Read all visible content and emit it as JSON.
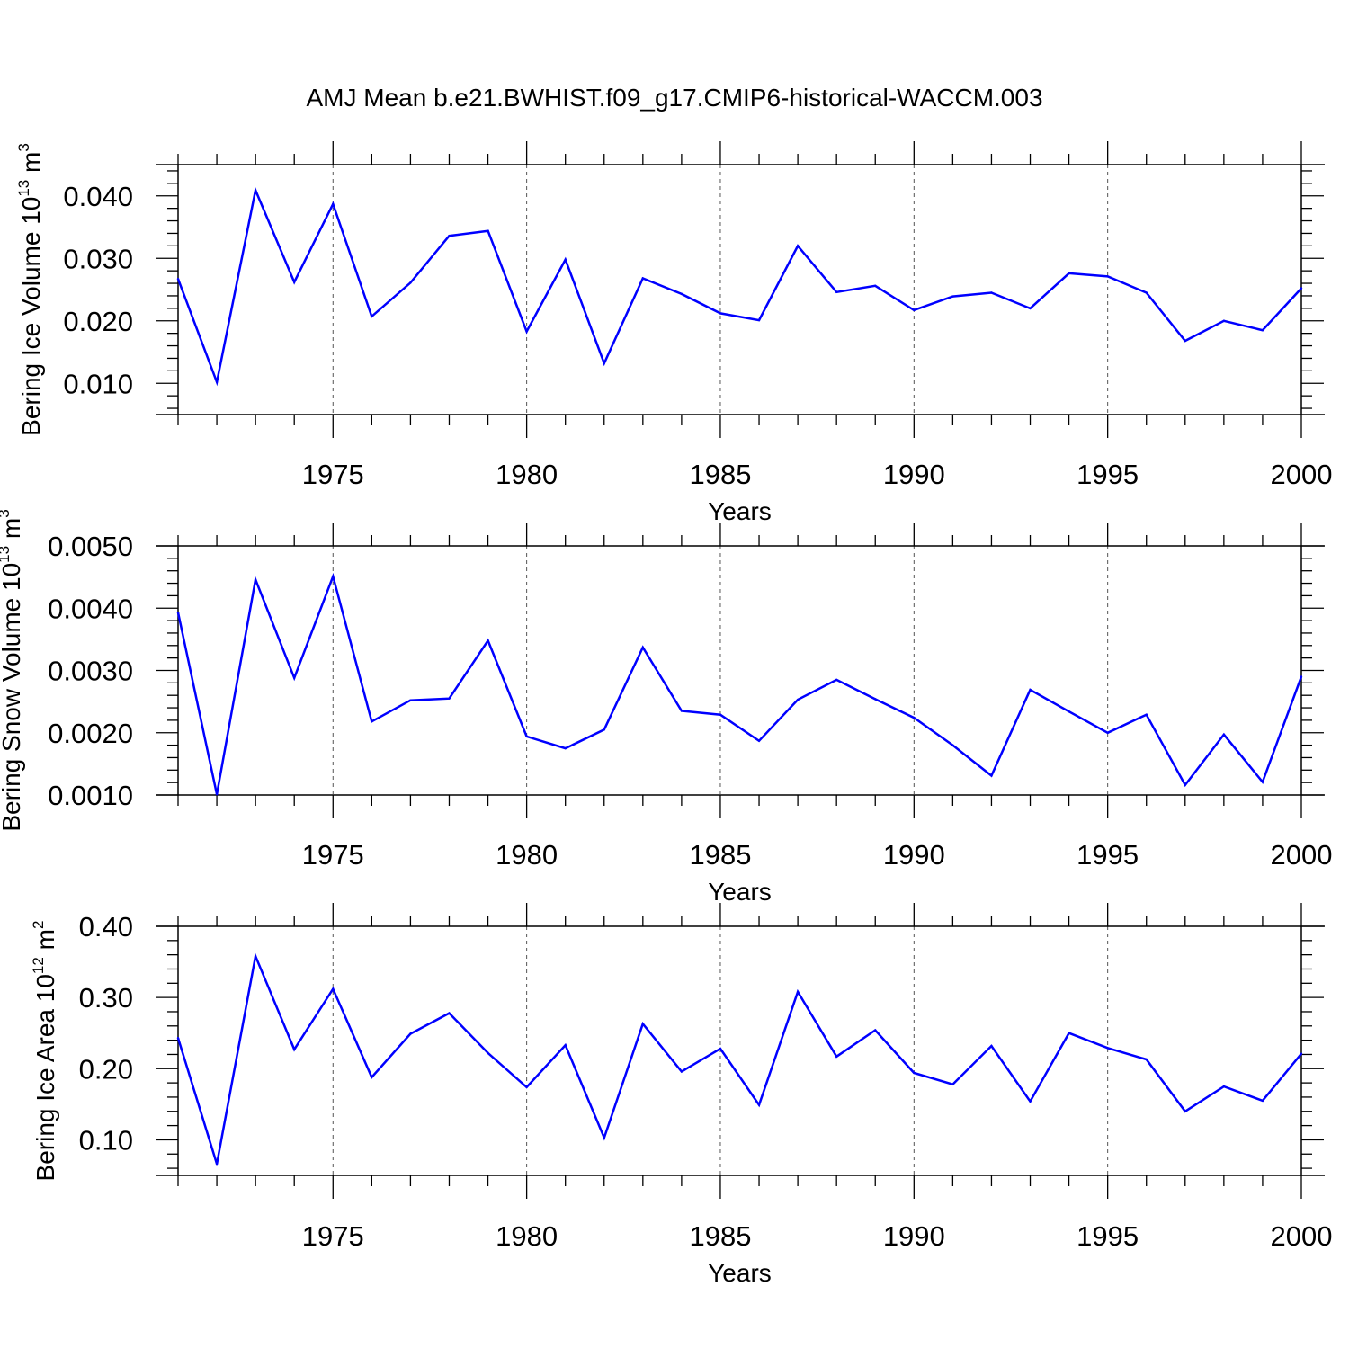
{
  "title": "AMJ Mean b.e21.BWHIST.f09_g17.CMIP6-historical-WACCM.003",
  "colors": {
    "line": "#0000ff",
    "axis": "#000000",
    "grid": "#555555",
    "background": "#ffffff"
  },
  "chart_data": [
    {
      "type": "line",
      "xlabel": "Years",
      "ylabel": {
        "text": "Bering Ice Volume 10",
        "exponent": "13",
        "unit": "m",
        "unit_exponent": "3"
      },
      "xlim": [
        1971,
        2000
      ],
      "ylim": [
        0.005,
        0.045
      ],
      "grid": "vertical dashed at major x ticks",
      "x_ticks": [
        "1975",
        "1980",
        "1985",
        "1990",
        "1995",
        "2000"
      ],
      "y_ticks": [
        "0.010",
        "0.020",
        "0.030",
        "0.040"
      ],
      "x": [
        1971,
        1972,
        1973,
        1974,
        1975,
        1976,
        1977,
        1978,
        1979,
        1980,
        1981,
        1982,
        1983,
        1984,
        1985,
        1986,
        1987,
        1988,
        1989,
        1990,
        1991,
        1992,
        1993,
        1994,
        1995,
        1996,
        1997,
        1998,
        1999,
        2000
      ],
      "series": [
        {
          "values": [
            0.0267,
            0.0102,
            0.0409,
            0.0262,
            0.0387,
            0.0207,
            0.0261,
            0.0336,
            0.0344,
            0.0183,
            0.0298,
            0.0132,
            0.0268,
            0.0243,
            0.0212,
            0.0201,
            0.032,
            0.0246,
            0.0256,
            0.0217,
            0.0239,
            0.0245,
            0.022,
            0.0276,
            0.0271,
            0.0245,
            0.0168,
            0.02,
            0.0185,
            0.0252
          ]
        }
      ]
    },
    {
      "type": "line",
      "xlabel": "Years",
      "ylabel": {
        "text": "Bering Snow Volume 10",
        "exponent": "13",
        "unit": "m",
        "unit_exponent": "3"
      },
      "xlim": [
        1971,
        2000
      ],
      "ylim": [
        0.001,
        0.005
      ],
      "grid": "vertical dashed at major x ticks",
      "x_ticks": [
        "1975",
        "1980",
        "1985",
        "1990",
        "1995",
        "2000"
      ],
      "y_ticks": [
        "0.0010",
        "0.0020",
        "0.0030",
        "0.0040",
        "0.0050"
      ],
      "x": [
        1971,
        1972,
        1973,
        1974,
        1975,
        1976,
        1977,
        1978,
        1979,
        1980,
        1981,
        1982,
        1983,
        1984,
        1985,
        1986,
        1987,
        1988,
        1989,
        1990,
        1991,
        1992,
        1993,
        1994,
        1995,
        1996,
        1997,
        1998,
        1999,
        2000
      ],
      "series": [
        {
          "values": [
            0.00393,
            0.00101,
            0.00446,
            0.00288,
            0.00451,
            0.00218,
            0.00252,
            0.00255,
            0.00348,
            0.00194,
            0.00175,
            0.00205,
            0.00337,
            0.00235,
            0.00229,
            0.00187,
            0.00253,
            0.00285,
            0.00254,
            0.00224,
            0.0018,
            0.00131,
            0.00269,
            0.00234,
            0.002,
            0.00229,
            0.00116,
            0.00197,
            0.00121,
            0.0029
          ]
        }
      ]
    },
    {
      "type": "line",
      "xlabel": "Years",
      "ylabel": {
        "text": "Bering Ice Area 10",
        "exponent": "12",
        "unit": "m",
        "unit_exponent": "2"
      },
      "xlim": [
        1971,
        2000
      ],
      "ylim": [
        0.05,
        0.4
      ],
      "grid": "vertical dashed at major x ticks",
      "x_ticks": [
        "1975",
        "1980",
        "1985",
        "1990",
        "1995",
        "2000"
      ],
      "y_ticks": [
        "0.10",
        "0.20",
        "0.30",
        "0.40"
      ],
      "x": [
        1971,
        1972,
        1973,
        1974,
        1975,
        1976,
        1977,
        1978,
        1979,
        1980,
        1981,
        1982,
        1983,
        1984,
        1985,
        1986,
        1987,
        1988,
        1989,
        1990,
        1991,
        1992,
        1993,
        1994,
        1995,
        1996,
        1997,
        1998,
        1999,
        2000
      ],
      "series": [
        {
          "values": [
            0.243,
            0.066,
            0.358,
            0.227,
            0.312,
            0.188,
            0.249,
            0.278,
            0.222,
            0.174,
            0.233,
            0.103,
            0.263,
            0.196,
            0.228,
            0.149,
            0.308,
            0.217,
            0.254,
            0.194,
            0.178,
            0.232,
            0.154,
            0.25,
            0.229,
            0.213,
            0.14,
            0.175,
            0.155,
            0.221
          ]
        }
      ]
    }
  ]
}
